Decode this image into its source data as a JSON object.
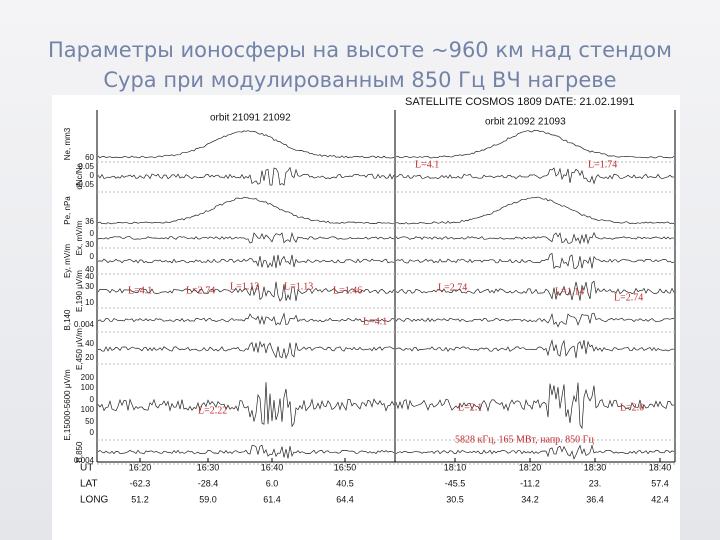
{
  "slide": {
    "title_lines": [
      "Параметры ионосферы на высоте ~960 км над стендом",
      "Сура при модулированным 850 Гц ВЧ нагреве"
    ],
    "figure": {
      "header": "SATELLITE COSMOS 1809 DATE: 21.02.1991",
      "orbits": [
        "orbit 21091 21092",
        "orbit 21092 21093"
      ],
      "panels": [
        {
          "label": "Ne, mm3",
          "ticks": [
            "60"
          ]
        },
        {
          "label": "dNc/Nc",
          "ticks": [
            "0.05",
            "0",
            "-0.05"
          ]
        },
        {
          "label": "Pe, nPa",
          "ticks": [
            "36"
          ]
        },
        {
          "label": "Ex, mV/m",
          "ticks": [
            "0",
            "30"
          ]
        },
        {
          "label": "Ey, mV/m",
          "ticks": [
            "0",
            "40"
          ]
        },
        {
          "label": "E,190 μV/m",
          "ticks": [
            "40",
            "30",
            "10"
          ]
        },
        {
          "label": "B,140",
          "ticks": [
            "0.004"
          ]
        },
        {
          "label": "E,450 μV/m",
          "ticks": [
            "40",
            "20"
          ]
        },
        {
          "label": "E,15000-5600 μV/m",
          "ticks": [
            "200",
            "100",
            "0",
            "100",
            "50",
            "0"
          ]
        },
        {
          "label": "B,850",
          "ticks": [
            "0.004"
          ]
        }
      ],
      "annotations": [
        "L=4.1",
        "L=1.74",
        "L=4.1",
        "L=2.74",
        "L=1.13",
        "L=1.13",
        "L=1.46",
        "L=2.74",
        "L=1.14",
        "L=2.74",
        "L=4.1",
        "L=2.22",
        "L=2.1",
        "L=2.0",
        "5828 кГц, 165 МВт, напр. 850 Гц"
      ],
      "time_axis": [
        {
          "label": "UT",
          "values": [
            "16:20",
            "16:30",
            "16:40",
            "16:50",
            "18:10",
            "18:20",
            "18:30",
            "18:40"
          ]
        },
        {
          "label": "LAT",
          "values": [
            "-62.3",
            "-28.4",
            "6.0",
            "40.5",
            "-45.5",
            "-11.2",
            "23.",
            "57.4"
          ]
        },
        {
          "label": "LONG",
          "values": [
            "51.2",
            "59.0",
            "61.4",
            "64.4",
            "30.5",
            "34.2",
            "36.4",
            "42.4"
          ]
        }
      ]
    }
  }
}
